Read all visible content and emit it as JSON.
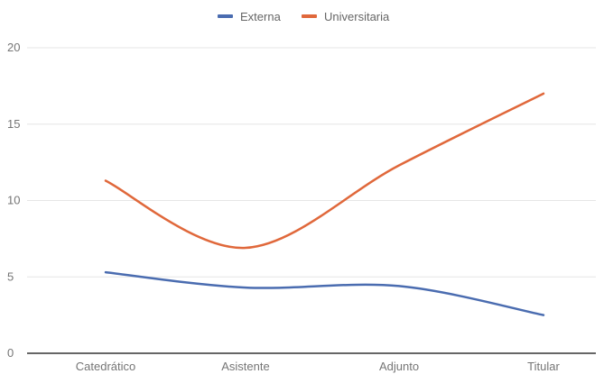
{
  "chart_data": {
    "type": "line",
    "categories": [
      "Catedrático",
      "Asistente",
      "Adjunto",
      "Titular"
    ],
    "series": [
      {
        "name": "Externa",
        "color": "#4a6cb0",
        "values": [
          5.3,
          4.3,
          4.4,
          2.5
        ]
      },
      {
        "name": "Universitaria",
        "color": "#e0683b",
        "values": [
          11.3,
          6.9,
          12.3,
          17.0
        ]
      }
    ],
    "ylim": [
      0,
      20
    ],
    "yticks": [
      "0",
      "5",
      "10",
      "15",
      "20"
    ],
    "grid": true,
    "legend_position": "top",
    "smooth": true
  }
}
